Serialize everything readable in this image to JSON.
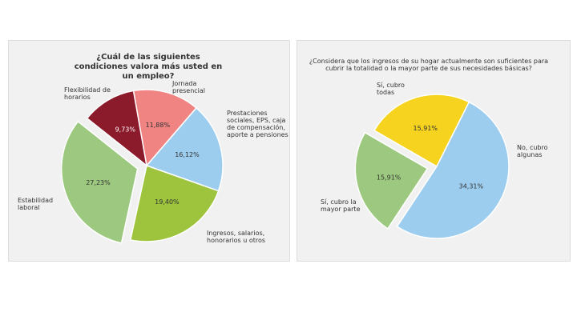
{
  "chart_data": [
    {
      "type": "pie",
      "title": "¿Cuál de las siguientes condiciones valora más usted en un empleo?",
      "categories": [
        "Jornada presencial",
        "Prestaciones sociales, EPS, caja de compensación, aporte a pensiones",
        "Ingresos, salarios, honorarios u otros",
        "Estabilidad laboral",
        "Flexibilidad de horarios"
      ],
      "values": [
        11.88,
        16.12,
        19.4,
        27.23,
        9.73
      ],
      "value_labels": [
        "11,88%",
        "16,12%",
        "19,40%",
        "27,23%",
        "9,73%"
      ],
      "colors": [
        "#ef8483",
        "#9ccdee",
        "#9dc43c",
        "#9cc97f",
        "#8b1a2b"
      ],
      "explode": [
        0,
        0,
        0,
        1,
        0
      ]
    },
    {
      "type": "pie",
      "title": "¿Considera que los ingresos de su hogar actualmente son suficientes para cubrir la totalidad o la mayor parte de sus necesidades básicas?",
      "categories": [
        "Sí, cubro todas",
        "No, cubro algunas",
        "Sí, cubro la mayor parte"
      ],
      "values": [
        15.91,
        34.31,
        15.91
      ],
      "value_labels": [
        "15,91%",
        "34,31%",
        "15,91%"
      ],
      "colors": [
        "#f6d31f",
        "#9ccdee",
        "#9cc97f"
      ],
      "explode": [
        0,
        0,
        1
      ]
    }
  ]
}
